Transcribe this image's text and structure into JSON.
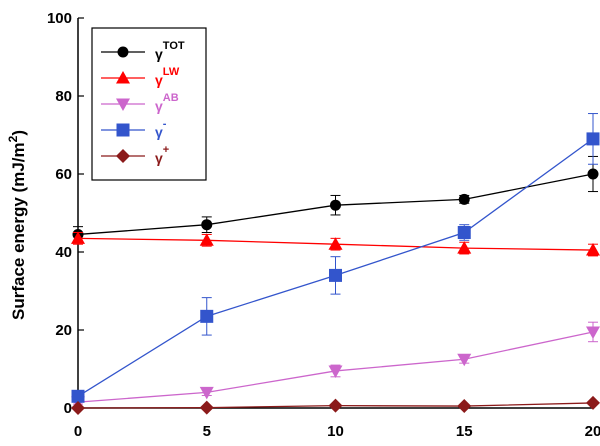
{
  "chart_data": {
    "type": "line",
    "title": "",
    "xlabel": "",
    "ylabel_main": "Surface energy (mJ/m",
    "ylabel_exp": "2",
    "ylabel_close": ")",
    "x": [
      0,
      5,
      10,
      15,
      20
    ],
    "xlim": [
      0,
      20
    ],
    "ylim": [
      0,
      100
    ],
    "x_ticks": [
      0,
      5,
      10,
      15,
      20
    ],
    "y_ticks": [
      0,
      20,
      40,
      60,
      80,
      100
    ],
    "grid": false,
    "legend_position": "top-left",
    "series": [
      {
        "name": "TOT",
        "label_base": "γ",
        "label_sup": "TOT",
        "color": "#000000",
        "marker": "circle",
        "values": [
          44.5,
          47,
          52,
          53.5,
          60
        ],
        "errors": [
          2,
          2,
          2.5,
          1,
          4.5
        ]
      },
      {
        "name": "LW",
        "label_base": "γ",
        "label_sup": "LW",
        "color": "#ff0000",
        "marker": "triangle-up",
        "values": [
          43.5,
          43,
          42,
          41,
          40.5
        ],
        "errors": [
          1.5,
          1.5,
          1.5,
          1.5,
          1.5
        ]
      },
      {
        "name": "AB",
        "label_base": "γ",
        "label_sup": "AB",
        "color": "#cc66cc",
        "marker": "triangle-down",
        "values": [
          1.5,
          4,
          9.5,
          12.5,
          19.5
        ],
        "errors": [
          0.5,
          0.8,
          1.5,
          1.0,
          2.5
        ]
      },
      {
        "name": "-",
        "label_base": "γ",
        "label_sup": "-",
        "color": "#3355cc",
        "marker": "square",
        "values": [
          3,
          23.5,
          34,
          45,
          69
        ],
        "errors": [
          0.5,
          4.8,
          4.8,
          2.0,
          6.5
        ]
      },
      {
        "name": "+",
        "label_base": "γ",
        "label_sup": "+",
        "color": "#8b1a1a",
        "marker": "diamond",
        "values": [
          0,
          0.1,
          0.6,
          0.5,
          1.3
        ],
        "errors": [
          0,
          0,
          0,
          0,
          0
        ]
      }
    ]
  }
}
